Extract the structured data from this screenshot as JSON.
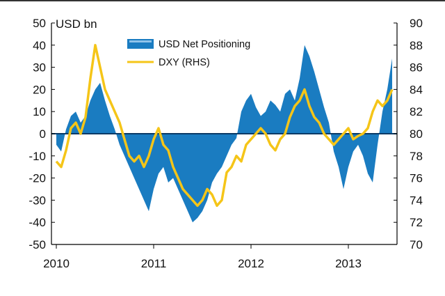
{
  "chart_data": {
    "type": "area",
    "title": "",
    "xlabel": "",
    "ylabel": "USD bn",
    "y2label": "",
    "ylim": [
      -50,
      50
    ],
    "y2lim": [
      70,
      90
    ],
    "yticks": [
      "50",
      "40",
      "30",
      "20",
      "10",
      "0",
      "-10",
      "-20",
      "-30",
      "-40",
      "-50"
    ],
    "y2ticks": [
      "90",
      "88",
      "86",
      "84",
      "82",
      "80",
      "78",
      "76",
      "74",
      "72",
      "70"
    ],
    "xticks": [
      "2010",
      "2011",
      "2012",
      "2013"
    ],
    "legend_position": "top-center",
    "colors": {
      "positioning": "#1a7cc1",
      "dxy": "#f5c518",
      "zero_line": "#0a3a66"
    },
    "series": [
      {
        "name": "USD Net Positioning",
        "kind": "area",
        "axis": "left",
        "x": [
          2010.0,
          2010.05,
          2010.1,
          2010.15,
          2010.2,
          2010.25,
          2010.3,
          2010.35,
          2010.4,
          2010.45,
          2010.5,
          2010.55,
          2010.6,
          2010.65,
          2010.7,
          2010.75,
          2010.8,
          2010.85,
          2010.9,
          2010.95,
          2011.0,
          2011.05,
          2011.1,
          2011.15,
          2011.2,
          2011.25,
          2011.3,
          2011.35,
          2011.4,
          2011.45,
          2011.5,
          2011.55,
          2011.6,
          2011.65,
          2011.7,
          2011.75,
          2011.8,
          2011.85,
          2011.9,
          2011.95,
          2012.0,
          2012.05,
          2012.1,
          2012.15,
          2012.2,
          2012.25,
          2012.3,
          2012.35,
          2012.4,
          2012.45,
          2012.5,
          2012.55,
          2012.6,
          2012.65,
          2012.7,
          2012.75,
          2012.8,
          2012.85,
          2012.9,
          2012.95,
          2013.0,
          2013.05,
          2013.1,
          2013.15,
          2013.2,
          2013.25,
          2013.3,
          2013.35,
          2013.4,
          2013.45
        ],
        "values": [
          -5,
          -8,
          2,
          8,
          10,
          5,
          8,
          15,
          20,
          23,
          15,
          8,
          2,
          -5,
          -10,
          -15,
          -20,
          -25,
          -30,
          -35,
          -25,
          -18,
          -15,
          -22,
          -20,
          -25,
          -30,
          -35,
          -40,
          -38,
          -35,
          -30,
          -22,
          -18,
          -15,
          -10,
          -5,
          -2,
          10,
          15,
          18,
          12,
          8,
          10,
          15,
          13,
          10,
          18,
          20,
          15,
          25,
          40,
          35,
          28,
          20,
          12,
          5,
          -8,
          -15,
          -25,
          -15,
          -8,
          -5,
          -10,
          -18,
          -22,
          -5,
          10,
          20,
          34
        ]
      },
      {
        "name": "DXY (RHS)",
        "kind": "line",
        "axis": "right",
        "x": [
          2010.0,
          2010.05,
          2010.1,
          2010.15,
          2010.2,
          2010.25,
          2010.3,
          2010.35,
          2010.4,
          2010.45,
          2010.5,
          2010.55,
          2010.6,
          2010.65,
          2010.7,
          2010.75,
          2010.8,
          2010.85,
          2010.9,
          2010.95,
          2011.0,
          2011.05,
          2011.1,
          2011.15,
          2011.2,
          2011.25,
          2011.3,
          2011.35,
          2011.4,
          2011.45,
          2011.5,
          2011.55,
          2011.6,
          2011.65,
          2011.7,
          2011.75,
          2011.8,
          2011.85,
          2011.9,
          2011.95,
          2012.0,
          2012.05,
          2012.1,
          2012.15,
          2012.2,
          2012.25,
          2012.3,
          2012.35,
          2012.4,
          2012.45,
          2012.5,
          2012.55,
          2012.6,
          2012.65,
          2012.7,
          2012.75,
          2012.8,
          2012.85,
          2012.9,
          2012.95,
          2013.0,
          2013.05,
          2013.1,
          2013.15,
          2013.2,
          2013.25,
          2013.3,
          2013.35,
          2013.4,
          2013.45
        ],
        "values": [
          77.5,
          77.0,
          78.5,
          80.5,
          81.0,
          80.0,
          81.5,
          85.0,
          88.0,
          86.0,
          84.0,
          83.0,
          82.0,
          81.0,
          79.5,
          78.0,
          77.5,
          78.0,
          77.0,
          78.0,
          79.5,
          80.5,
          79.0,
          78.5,
          77.0,
          76.0,
          75.0,
          74.5,
          74.0,
          73.5,
          74.0,
          75.0,
          74.5,
          73.5,
          74.0,
          76.5,
          77.0,
          78.0,
          77.5,
          79.0,
          79.5,
          80.0,
          80.5,
          80.0,
          79.0,
          78.5,
          79.5,
          80.0,
          81.5,
          82.5,
          83.0,
          84.0,
          82.5,
          81.5,
          81.0,
          80.0,
          79.5,
          79.0,
          79.5,
          80.0,
          80.5,
          79.5,
          79.8,
          80.0,
          80.5,
          82.0,
          83.0,
          82.5,
          83.0,
          84.0
        ]
      }
    ]
  }
}
